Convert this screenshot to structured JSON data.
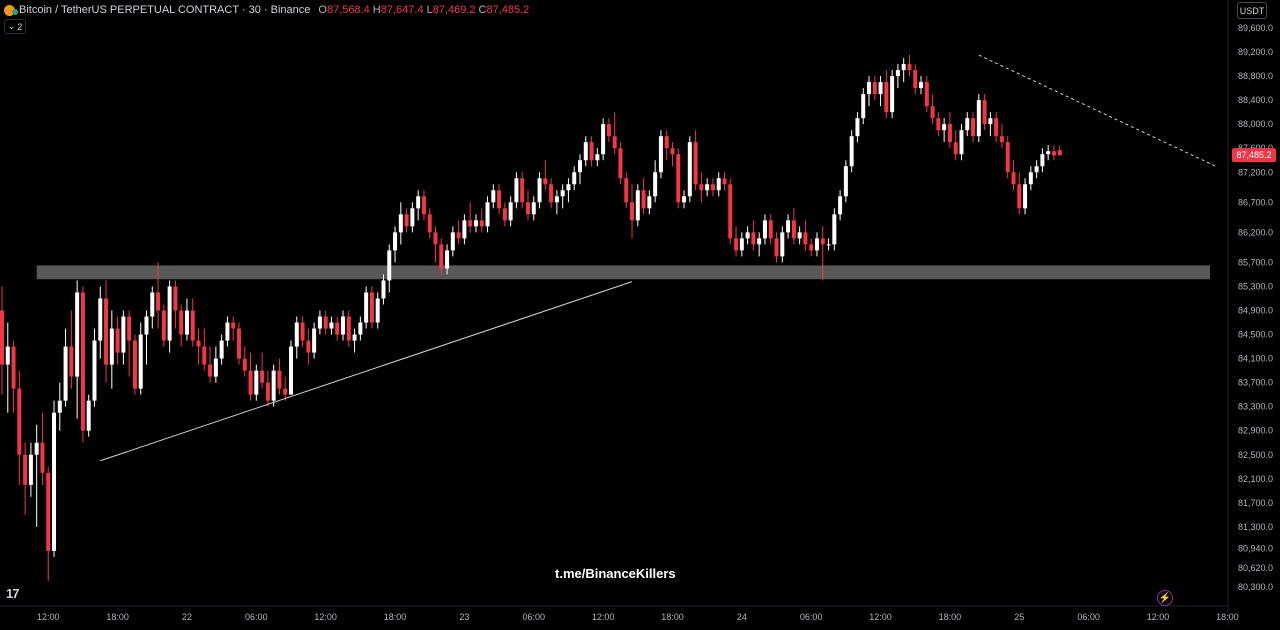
{
  "header": {
    "title": "Bitcoin / TetherUS PERPETUAL CONTRACT · 30 · Binance",
    "ohlc": [
      {
        "k": "O",
        "v": "87,568.4"
      },
      {
        "k": "H",
        "v": "87,647.4"
      },
      {
        "k": "L",
        "v": "87,469.2"
      },
      {
        "k": "C",
        "v": "87,485.2"
      }
    ],
    "indicator_toggle": "2"
  },
  "currency": "USDT",
  "watermark": "t.me/BinanceKillers",
  "colors": {
    "up": "#ffffff",
    "down": "#f23645",
    "background": "#000000",
    "zone": "#5d5d5d",
    "price_label_bg": "#f23645"
  },
  "icons": [
    "bitcoin-icon",
    "tradingview-logo-icon",
    "lightning-icon",
    "chevron-down-icon"
  ],
  "chart_data": {
    "type": "candlestick",
    "symbol": "BTCUSDT.P",
    "timeframe": "30",
    "ylim": [
      80150,
      89600
    ],
    "y_ticks": [
      "89,600.0",
      "89,200.0",
      "88,800.0",
      "88,400.0",
      "88,000.0",
      "87,600.0",
      "87,200.0",
      "86,700.0",
      "86,200.0",
      "85,700.0",
      "85,300.0",
      "84,900.0",
      "84,500.0",
      "84,100.0",
      "83,700.0",
      "83,300.0",
      "82,900.0",
      "82,500.0",
      "82,100.0",
      "81,700.0",
      "81,300.0",
      "80,940.0",
      "80,620.0",
      "80,300.0"
    ],
    "y_tick_values": [
      89600,
      89200,
      88800,
      88400,
      88000,
      87600,
      87200,
      86700,
      86200,
      85700,
      85300,
      84900,
      84500,
      84100,
      83700,
      83300,
      82900,
      82500,
      82100,
      81700,
      81300,
      80940,
      80620,
      80300
    ],
    "x_ticks": [
      "12:00",
      "18:00",
      "22",
      "06:00",
      "12:00",
      "18:00",
      "23",
      "06:00",
      "12:00",
      "18:00",
      "24",
      "06:00",
      "12:00",
      "18:00",
      "25",
      "06:00",
      "12:00",
      "18:00"
    ],
    "x_tick_index": [
      8,
      20,
      32,
      44,
      56,
      68,
      80,
      92,
      104,
      116,
      128,
      140,
      152,
      164,
      176,
      188,
      200,
      212
    ],
    "last_price": "87,485.2",
    "last_price_value": 87485.2,
    "support_zone": {
      "low": 85420,
      "high": 85650,
      "from_index": 6,
      "to_index": 209
    },
    "trendlines": [
      {
        "name": "ascending-support",
        "style": "solid",
        "from": [
          17,
          82400
        ],
        "to": [
          109,
          85380
        ]
      },
      {
        "name": "descending-resistance",
        "style": "dashed",
        "from": [
          169,
          89150
        ],
        "to": [
          210,
          87300
        ]
      }
    ],
    "candles": [
      [
        84900,
        85300,
        83500,
        84000
      ],
      [
        84000,
        84700,
        83200,
        84300
      ],
      [
        84300,
        84400,
        83200,
        83600
      ],
      [
        83600,
        83900,
        82000,
        82500
      ],
      [
        82500,
        82700,
        81500,
        82000
      ],
      [
        82000,
        82700,
        81800,
        82500
      ],
      [
        82500,
        83000,
        81300,
        82700
      ],
      [
        82700,
        83200,
        82000,
        82200
      ],
      [
        82200,
        82300,
        80400,
        80900
      ],
      [
        80900,
        83400,
        80800,
        83200
      ],
      [
        83200,
        83700,
        82900,
        83400
      ],
      [
        83400,
        84600,
        83300,
        84300
      ],
      [
        84300,
        84900,
        83600,
        83800
      ],
      [
        83800,
        85400,
        83100,
        85200
      ],
      [
        85200,
        85300,
        82700,
        82900
      ],
      [
        82900,
        83500,
        82800,
        83400
      ],
      [
        83400,
        84600,
        83300,
        84400
      ],
      [
        84400,
        85300,
        84100,
        85100
      ],
      [
        85100,
        85400,
        83700,
        84000
      ],
      [
        84000,
        84900,
        83600,
        84600
      ],
      [
        84600,
        84800,
        84000,
        84200
      ],
      [
        84200,
        84900,
        84000,
        84800
      ],
      [
        84800,
        84900,
        83800,
        84400
      ],
      [
        84400,
        84500,
        83500,
        83600
      ],
      [
        83600,
        84700,
        83500,
        84500
      ],
      [
        84500,
        84900,
        84000,
        84800
      ],
      [
        84800,
        85300,
        84600,
        85200
      ],
      [
        85200,
        85700,
        84600,
        84900
      ],
      [
        84900,
        85000,
        84300,
        84400
      ],
      [
        84400,
        85400,
        84200,
        85300
      ],
      [
        85300,
        85400,
        84600,
        84900
      ],
      [
        84900,
        85000,
        84300,
        84500
      ],
      [
        84500,
        85100,
        84400,
        84900
      ],
      [
        84900,
        85100,
        84300,
        84400
      ],
      [
        84400,
        84600,
        84000,
        84300
      ],
      [
        84300,
        84600,
        83900,
        84000
      ],
      [
        84000,
        84300,
        83700,
        83800
      ],
      [
        83800,
        84300,
        83700,
        84100
      ],
      [
        84100,
        84500,
        84000,
        84400
      ],
      [
        84400,
        84800,
        84300,
        84700
      ],
      [
        84700,
        84800,
        84400,
        84600
      ],
      [
        84600,
        84700,
        84000,
        84100
      ],
      [
        84100,
        84300,
        83800,
        83900
      ],
      [
        83900,
        84200,
        83400,
        83500
      ],
      [
        83500,
        84000,
        83400,
        83900
      ],
      [
        83900,
        84200,
        83600,
        83700
      ],
      [
        83700,
        83900,
        83300,
        83400
      ],
      [
        83400,
        84000,
        83300,
        83900
      ],
      [
        83900,
        84100,
        83500,
        83600
      ],
      [
        83600,
        83800,
        83400,
        83500
      ],
      [
        83500,
        84400,
        83500,
        84300
      ],
      [
        84300,
        84800,
        84100,
        84700
      ],
      [
        84700,
        84800,
        84300,
        84400
      ],
      [
        84400,
        84600,
        84000,
        84200
      ],
      [
        84200,
        84700,
        84100,
        84600
      ],
      [
        84600,
        84900,
        84500,
        84800
      ],
      [
        84800,
        84900,
        84500,
        84600
      ],
      [
        84600,
        84800,
        84500,
        84700
      ],
      [
        84700,
        84800,
        84400,
        84500
      ],
      [
        84500,
        84900,
        84400,
        84800
      ],
      [
        84800,
        84900,
        84300,
        84400
      ],
      [
        84400,
        84600,
        84200,
        84500
      ],
      [
        84500,
        84800,
        84400,
        84700
      ],
      [
        84700,
        85300,
        84600,
        85200
      ],
      [
        85200,
        85300,
        84600,
        84700
      ],
      [
        84700,
        85200,
        84600,
        85100
      ],
      [
        85100,
        85500,
        85000,
        85400
      ],
      [
        85400,
        86000,
        85200,
        85900
      ],
      [
        85900,
        86300,
        85700,
        86200
      ],
      [
        86200,
        86700,
        86000,
        86500
      ],
      [
        86500,
        86600,
        86200,
        86300
      ],
      [
        86300,
        86700,
        86200,
        86600
      ],
      [
        86600,
        86900,
        86400,
        86800
      ],
      [
        86800,
        86900,
        86400,
        86500
      ],
      [
        86500,
        86600,
        86100,
        86200
      ],
      [
        86200,
        86300,
        85700,
        86000
      ],
      [
        86000,
        86100,
        85500,
        85600
      ],
      [
        85600,
        86000,
        85500,
        85900
      ],
      [
        85900,
        86300,
        85800,
        86200
      ],
      [
        86200,
        86400,
        86000,
        86100
      ],
      [
        86100,
        86500,
        86000,
        86400
      ],
      [
        86400,
        86700,
        86200,
        86300
      ],
      [
        86300,
        86500,
        86200,
        86400
      ],
      [
        86400,
        86600,
        86200,
        86300
      ],
      [
        86300,
        86800,
        86200,
        86700
      ],
      [
        86700,
        87000,
        86600,
        86900
      ],
      [
        86900,
        87000,
        86500,
        86600
      ],
      [
        86600,
        86700,
        86300,
        86400
      ],
      [
        86400,
        86800,
        86300,
        86700
      ],
      [
        86700,
        87200,
        86600,
        87100
      ],
      [
        87100,
        87200,
        86600,
        86700
      ],
      [
        86700,
        86900,
        86400,
        86500
      ],
      [
        86500,
        86800,
        86400,
        86700
      ],
      [
        86700,
        87200,
        86600,
        87100
      ],
      [
        87100,
        87400,
        86900,
        87000
      ],
      [
        87000,
        87100,
        86600,
        86700
      ],
      [
        86700,
        86900,
        86500,
        86800
      ],
      [
        86800,
        87000,
        86600,
        86900
      ],
      [
        86900,
        87100,
        86700,
        87000
      ],
      [
        87000,
        87300,
        86900,
        87200
      ],
      [
        87200,
        87500,
        87000,
        87400
      ],
      [
        87400,
        87800,
        87300,
        87700
      ],
      [
        87700,
        87800,
        87300,
        87400
      ],
      [
        87400,
        87600,
        87300,
        87500
      ],
      [
        87500,
        88100,
        87400,
        88000
      ],
      [
        88000,
        88100,
        87700,
        87800
      ],
      [
        87800,
        88200,
        87500,
        87600
      ],
      [
        87600,
        87700,
        87000,
        87100
      ],
      [
        87100,
        87200,
        86600,
        86700
      ],
      [
        86700,
        87000,
        86100,
        86400
      ],
      [
        86400,
        87000,
        86300,
        86900
      ],
      [
        86900,
        87100,
        86500,
        86600
      ],
      [
        86600,
        86900,
        86500,
        86800
      ],
      [
        86800,
        87400,
        86700,
        87200
      ],
      [
        87200,
        87900,
        87100,
        87800
      ],
      [
        87800,
        87900,
        87400,
        87600
      ],
      [
        87600,
        87700,
        87300,
        87500
      ],
      [
        87500,
        87600,
        86600,
        86700
      ],
      [
        86700,
        86900,
        86600,
        86800
      ],
      [
        86800,
        87800,
        86700,
        87700
      ],
      [
        87700,
        87900,
        86900,
        87000
      ],
      [
        87000,
        87200,
        86700,
        86900
      ],
      [
        86900,
        87100,
        86800,
        87000
      ],
      [
        87000,
        87100,
        86800,
        86900
      ],
      [
        86900,
        87200,
        86800,
        87100
      ],
      [
        87100,
        87200,
        86900,
        87000
      ],
      [
        87000,
        87100,
        86000,
        86100
      ],
      [
        86100,
        86300,
        85800,
        85900
      ],
      [
        85900,
        86200,
        85800,
        86100
      ],
      [
        86100,
        86300,
        86000,
        86200
      ],
      [
        86200,
        86400,
        85900,
        86000
      ],
      [
        86000,
        86200,
        85800,
        86100
      ],
      [
        86100,
        86500,
        86000,
        86400
      ],
      [
        86400,
        86500,
        86000,
        86100
      ],
      [
        86100,
        86200,
        85700,
        85800
      ],
      [
        85800,
        86300,
        85700,
        86200
      ],
      [
        86200,
        86500,
        86100,
        86400
      ],
      [
        86400,
        86600,
        86000,
        86100
      ],
      [
        86100,
        86300,
        86000,
        86200
      ],
      [
        86200,
        86400,
        85900,
        86000
      ],
      [
        86000,
        86100,
        85800,
        85900
      ],
      [
        85900,
        86200,
        85800,
        86100
      ],
      [
        86100,
        86300,
        85400,
        86000
      ],
      [
        86000,
        86100,
        85900,
        86000
      ],
      [
        86000,
        86600,
        85900,
        86500
      ],
      [
        86500,
        86900,
        86400,
        86800
      ],
      [
        86800,
        87400,
        86700,
        87300
      ],
      [
        87300,
        87900,
        87200,
        87800
      ],
      [
        87800,
        88200,
        87700,
        88100
      ],
      [
        88100,
        88600,
        88000,
        88500
      ],
      [
        88500,
        88800,
        88300,
        88700
      ],
      [
        88700,
        88800,
        88400,
        88500
      ],
      [
        88500,
        88800,
        88300,
        88700
      ],
      [
        88700,
        88900,
        88100,
        88200
      ],
      [
        88200,
        88900,
        88100,
        88800
      ],
      [
        88800,
        89000,
        88600,
        88900
      ],
      [
        88900,
        89100,
        88700,
        89000
      ],
      [
        89000,
        89150,
        88800,
        88900
      ],
      [
        88900,
        89000,
        88500,
        88600
      ],
      [
        88600,
        88800,
        88500,
        88700
      ],
      [
        88700,
        88800,
        88200,
        88300
      ],
      [
        88300,
        88500,
        88000,
        88100
      ],
      [
        88100,
        88200,
        87800,
        87900
      ],
      [
        87900,
        88100,
        87700,
        88000
      ],
      [
        88000,
        88200,
        87600,
        87700
      ],
      [
        87700,
        87900,
        87400,
        87500
      ],
      [
        87500,
        88000,
        87400,
        87900
      ],
      [
        87900,
        88200,
        87800,
        88100
      ],
      [
        88100,
        88200,
        87700,
        87800
      ],
      [
        87800,
        88500,
        87700,
        88400
      ],
      [
        88400,
        88500,
        87900,
        88000
      ],
      [
        88000,
        88200,
        87800,
        88100
      ],
      [
        88100,
        88200,
        87700,
        87800
      ],
      [
        87800,
        88000,
        87600,
        87700
      ],
      [
        87700,
        87800,
        87100,
        87200
      ],
      [
        87200,
        87400,
        86900,
        87000
      ],
      [
        87000,
        87200,
        86500,
        86600
      ],
      [
        86600,
        87100,
        86500,
        87000
      ],
      [
        87000,
        87300,
        86900,
        87200
      ],
      [
        87200,
        87400,
        87100,
        87300
      ],
      [
        87300,
        87600,
        87200,
        87500
      ],
      [
        87500,
        87650,
        87400,
        87550
      ],
      [
        87550,
        87647,
        87400,
        87480
      ],
      [
        87568.4,
        87647.4,
        87469.2,
        87485.2
      ]
    ]
  }
}
